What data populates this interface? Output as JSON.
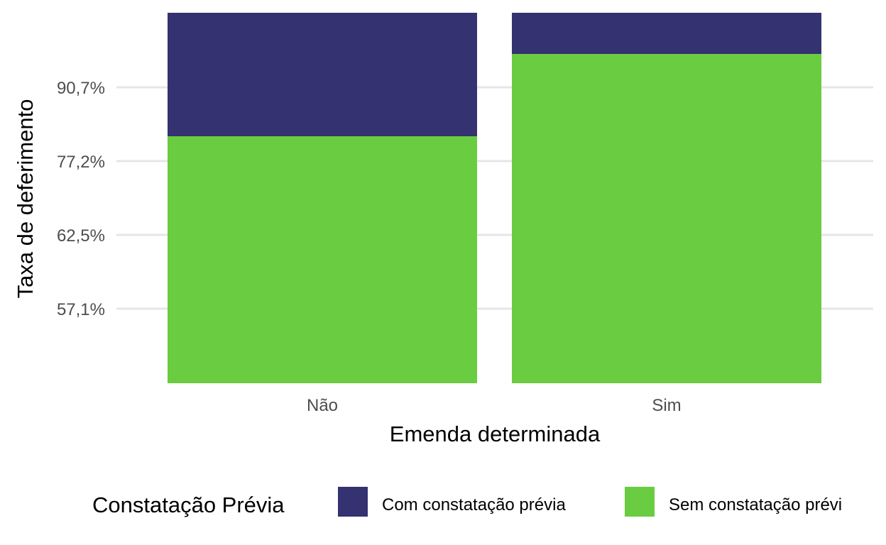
{
  "chart_data": {
    "type": "bar",
    "stacked": true,
    "xlabel": "Emenda determinada",
    "ylabel": "Taxa de deferimento",
    "categories": [
      "Não",
      "Sim"
    ],
    "y_ticks": [
      "57,1%",
      "62,5%",
      "77,2%",
      "90,7%"
    ],
    "series": [
      {
        "name": "Sem constatação prévia",
        "values": [
          0.6,
          0.8
        ],
        "color": "#6ACC40"
      },
      {
        "name": "Com constatação prévia",
        "values": [
          0.3,
          0.1
        ],
        "color": "#343270"
      }
    ],
    "y_total": 0.9,
    "grid": "horizontal",
    "legend": {
      "title": "Constatação Prévia",
      "position": "bottom",
      "labels": [
        "Com constatação prévia",
        "Sem constatação prévi"
      ]
    }
  }
}
